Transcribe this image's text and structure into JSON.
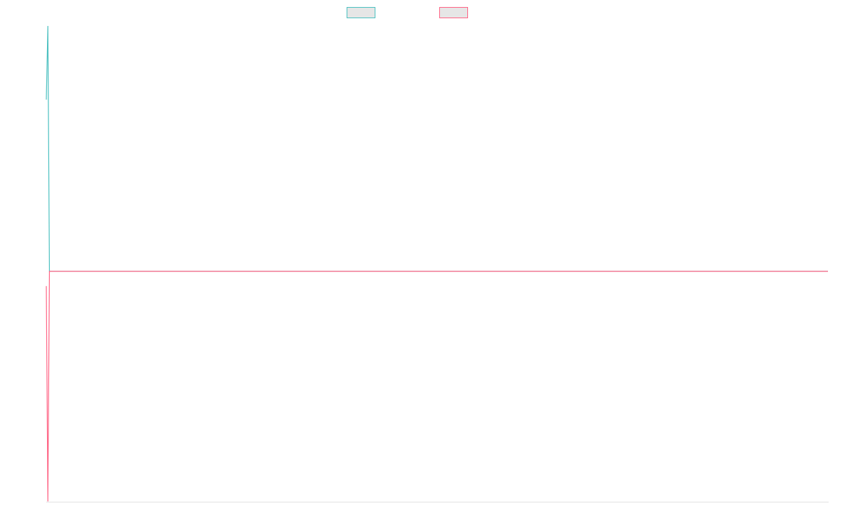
{
  "chart_data": {
    "type": "line",
    "x": [
      0,
      1,
      2,
      500
    ],
    "series": [
      {
        "color": "#4bc0c0",
        "values": [
          84.5,
          100,
          48.4,
          48.4
        ]
      },
      {
        "color": "#ff6384",
        "values": [
          45.3,
          0,
          48.4,
          48.4
        ]
      }
    ],
    "xlim": [
      0,
      500
    ],
    "ylim": [
      0,
      100
    ],
    "legend": "top"
  }
}
